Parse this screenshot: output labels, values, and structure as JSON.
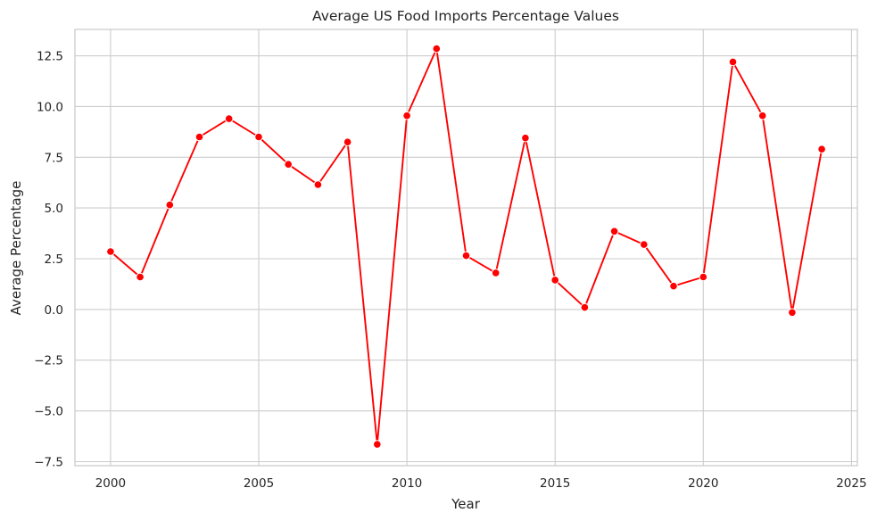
{
  "chart_data": {
    "type": "line",
    "title": "Average US Food Imports Percentage Values",
    "xlabel": "Year",
    "ylabel": "Average Percentage",
    "xlim": [
      1998.8,
      2025.2
    ],
    "ylim": [
      -7.7,
      13.8
    ],
    "x_ticks": [
      2000,
      2005,
      2010,
      2015,
      2020,
      2025
    ],
    "y_ticks": [
      -7.5,
      -5.0,
      -2.5,
      0.0,
      2.5,
      5.0,
      7.5,
      10.0,
      12.5
    ],
    "y_tick_labels": [
      "−7.5",
      "−5.0",
      "−2.5",
      "0.0",
      "2.5",
      "5.0",
      "7.5",
      "10.0",
      "12.5"
    ],
    "grid": true,
    "series": [
      {
        "color": "#ff0000",
        "x": [
          2000,
          2001,
          2002,
          2003,
          2004,
          2005,
          2006,
          2007,
          2008,
          2009,
          2010,
          2011,
          2012,
          2013,
          2014,
          2015,
          2016,
          2017,
          2018,
          2019,
          2020,
          2021,
          2022,
          2023,
          2024
        ],
        "values": [
          2.85,
          1.6,
          5.15,
          8.5,
          9.4,
          8.5,
          7.15,
          6.15,
          8.25,
          -6.65,
          9.55,
          12.85,
          2.65,
          1.8,
          8.45,
          1.45,
          0.1,
          3.85,
          3.2,
          1.15,
          1.6,
          12.2,
          9.55,
          -0.15,
          7.9
        ]
      }
    ]
  }
}
